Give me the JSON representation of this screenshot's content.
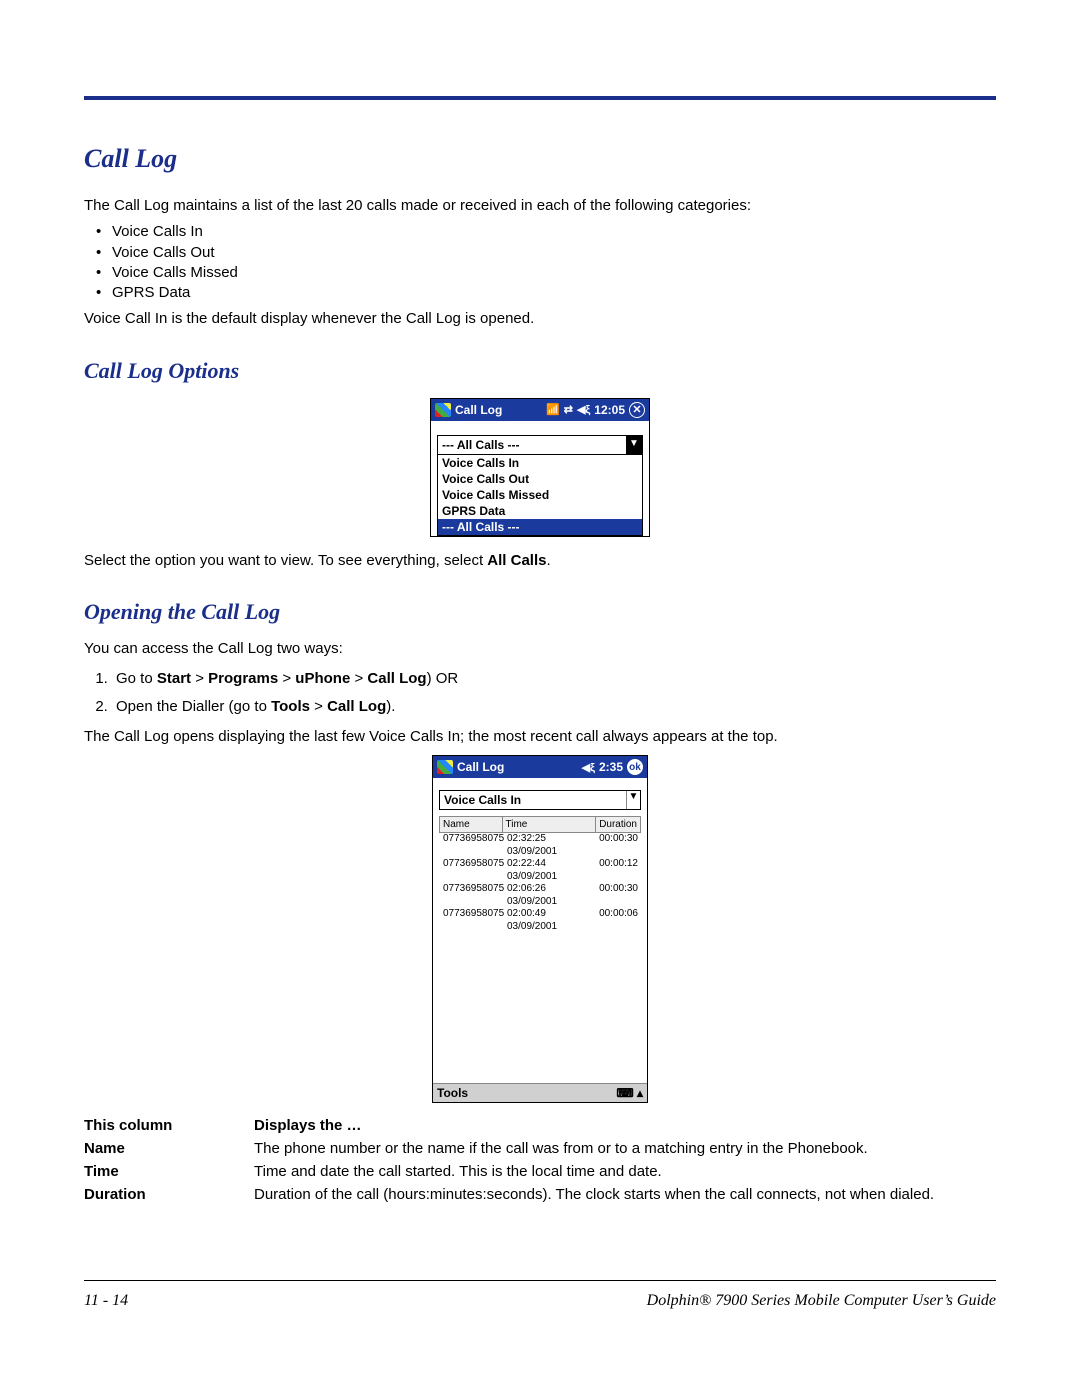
{
  "heading_call_log": "Call Log",
  "intro": "The Call Log maintains a list of the last 20 calls made or received in each of the following categories:",
  "bullets": [
    "Voice Calls In",
    "Voice Calls Out",
    "Voice Calls Missed",
    "GPRS Data"
  ],
  "default_note": "Voice Call In is the default display whenever the Call Log is opened.",
  "heading_options": "Call Log Options",
  "shot1": {
    "title": "Call Log",
    "time": "12:05",
    "combo_selected": "--- All Calls ---",
    "options": [
      "Voice Calls In",
      "Voice Calls Out",
      "Voice Calls Missed",
      "GPRS Data",
      "--- All Calls ---"
    ],
    "selected_index": 4
  },
  "options_note_pre": "Select the option you want to view. To see everything, select ",
  "options_note_bold": "All Calls",
  "options_note_post": ".",
  "heading_opening": "Opening the Call Log",
  "open_intro": "You can access the Call Log two ways:",
  "step1_pre": "Go to ",
  "step1_b1": "Start",
  "step1_gt1": " > ",
  "step1_b2": "Programs",
  "step1_gt2": " > ",
  "step1_b3": "uPhone",
  "step1_gt3": " > ",
  "step1_b4": "Call Log",
  "step1_post": ") OR",
  "step2_pre": "Open the Dialler (go to ",
  "step2_b1": "Tools",
  "step2_gt": " > ",
  "step2_b2": "Call Log",
  "step2_post": ").",
  "open_result": "The Call Log opens displaying the last few Voice Calls In; the most recent call always appears at the top.",
  "shot2": {
    "title": "Call Log",
    "time": "2:35",
    "ok": "ok",
    "filter": "Voice Calls In",
    "cols": {
      "name": "Name",
      "time": "Time",
      "duration": "Duration"
    },
    "rows": [
      {
        "name": "07736958075",
        "time": "02:32:25 03/09/2001",
        "dur": "00:00:30"
      },
      {
        "name": "07736958075",
        "time": "02:22:44 03/09/2001",
        "dur": "00:00:12"
      },
      {
        "name": "07736958075",
        "time": "02:06:26 03/09/2001",
        "dur": "00:00:30"
      },
      {
        "name": "07736958075",
        "time": "02:00:49 03/09/2001",
        "dur": "00:00:06"
      }
    ],
    "tools": "Tools"
  },
  "coltable": {
    "h1": "This column",
    "h2": "Displays the …",
    "r1a": "Name",
    "r1b": "The phone number or the name if the call was from or to a matching entry in the Phonebook.",
    "r2a": "Time",
    "r2b": "Time and date the call started. This is the local time and date.",
    "r3a": "Duration",
    "r3b": "Duration of the call (hours:minutes:seconds). The clock starts when the call connects, not when dialed."
  },
  "footer_left": "11 - 14",
  "footer_right": "Dolphin® 7900 Series Mobile Computer User’s Guide"
}
